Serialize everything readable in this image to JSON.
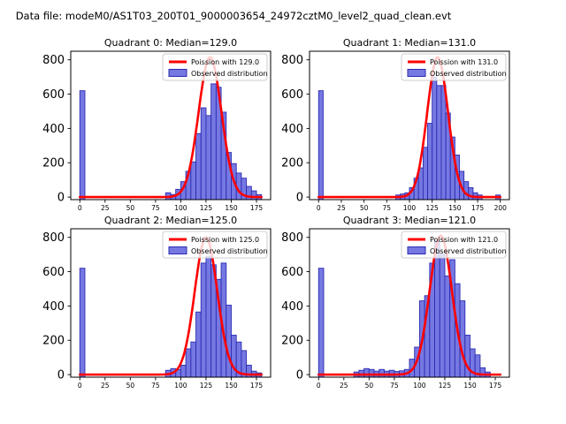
{
  "figure": {
    "title": "Data file: modeM0/AS1T03_200T01_9000003654_24972cztM0_level2_quad_clean.evt"
  },
  "colors": {
    "background": "#ffffff",
    "curve": "#ff0000",
    "bar_fill": "#7678e2",
    "bar_edge": "#2b2bb2"
  },
  "chart_data": [
    {
      "type": "bar",
      "title": "Quadrant 0: Median=129.0",
      "median": 129.0,
      "legend": [
        "Poission with 129.0",
        "Observed distribution"
      ],
      "legend_position": "upper right",
      "grid": false,
      "xticks": [
        0,
        25,
        50,
        75,
        100,
        125,
        150,
        175
      ],
      "yticks": [
        0,
        200,
        400,
        600,
        800
      ],
      "xlim": [
        -9,
        189
      ],
      "ylim": [
        -15,
        850
      ],
      "bin_width": 5,
      "curve": {
        "shape": "poisson",
        "mean": 129.0,
        "amplitude": 815,
        "xmax": 180
      },
      "bins": [
        [
          0,
          620
        ],
        [
          85,
          25
        ],
        [
          90,
          15
        ],
        [
          95,
          45
        ],
        [
          100,
          90
        ],
        [
          105,
          150
        ],
        [
          110,
          205
        ],
        [
          115,
          370
        ],
        [
          120,
          520
        ],
        [
          125,
          475
        ],
        [
          130,
          660
        ],
        [
          135,
          640
        ],
        [
          140,
          495
        ],
        [
          145,
          260
        ],
        [
          150,
          195
        ],
        [
          155,
          140
        ],
        [
          160,
          110
        ],
        [
          165,
          62
        ],
        [
          170,
          36
        ],
        [
          175,
          14
        ]
      ]
    },
    {
      "type": "bar",
      "title": "Quadrant 1: Median=131.0",
      "median": 131.0,
      "legend": [
        "Poission with 131.0",
        "Observed distribution"
      ],
      "legend_position": "upper right",
      "grid": false,
      "xticks": [
        0,
        25,
        50,
        75,
        100,
        125,
        150,
        175,
        200
      ],
      "yticks": [
        0,
        200,
        400,
        600,
        800
      ],
      "xlim": [
        -10,
        210
      ],
      "ylim": [
        -15,
        850
      ],
      "bin_width": 5,
      "curve": {
        "shape": "poisson",
        "mean": 131.0,
        "amplitude": 815,
        "xmax": 200
      },
      "bins": [
        [
          0,
          620
        ],
        [
          85,
          12
        ],
        [
          90,
          18
        ],
        [
          95,
          25
        ],
        [
          100,
          55
        ],
        [
          105,
          110
        ],
        [
          110,
          170
        ],
        [
          115,
          290
        ],
        [
          120,
          430
        ],
        [
          125,
          700
        ],
        [
          130,
          650
        ],
        [
          135,
          650
        ],
        [
          140,
          490
        ],
        [
          145,
          350
        ],
        [
          150,
          245
        ],
        [
          155,
          150
        ],
        [
          160,
          90
        ],
        [
          165,
          55
        ],
        [
          170,
          25
        ],
        [
          175,
          12
        ],
        [
          195,
          12
        ]
      ]
    },
    {
      "type": "bar",
      "title": "Quadrant 2: Median=125.0",
      "median": 125.0,
      "legend": [
        "Poission with 125.0",
        "Observed distribution"
      ],
      "legend_position": "upper right",
      "grid": false,
      "xticks": [
        0,
        25,
        50,
        75,
        100,
        125,
        150,
        175
      ],
      "yticks": [
        0,
        200,
        400,
        600,
        800
      ],
      "xlim": [
        -9,
        189
      ],
      "ylim": [
        -15,
        850
      ],
      "bin_width": 5,
      "curve": {
        "shape": "poisson",
        "mean": 125.0,
        "amplitude": 800,
        "xmax": 180
      },
      "bins": [
        [
          0,
          620
        ],
        [
          85,
          25
        ],
        [
          90,
          35
        ],
        [
          95,
          30
        ],
        [
          100,
          55
        ],
        [
          105,
          150
        ],
        [
          110,
          190
        ],
        [
          115,
          365
        ],
        [
          120,
          650
        ],
        [
          125,
          690
        ],
        [
          130,
          640
        ],
        [
          135,
          555
        ],
        [
          140,
          650
        ],
        [
          145,
          405
        ],
        [
          150,
          230
        ],
        [
          155,
          190
        ],
        [
          160,
          140
        ],
        [
          165,
          55
        ],
        [
          170,
          20
        ],
        [
          175,
          10
        ]
      ]
    },
    {
      "type": "bar",
      "title": "Quadrant 3: Median=121.0",
      "median": 121.0,
      "legend": [
        "Poission with 121.0",
        "Observed distribution"
      ],
      "legend_position": "upper right",
      "grid": false,
      "xticks": [
        0,
        25,
        50,
        75,
        100,
        125,
        150,
        175
      ],
      "yticks": [
        0,
        200,
        400,
        600,
        800
      ],
      "xlim": [
        -9,
        189
      ],
      "ylim": [
        -15,
        850
      ],
      "bin_width": 5,
      "curve": {
        "shape": "poisson",
        "mean": 121.0,
        "amplitude": 810,
        "xmax": 180
      },
      "bins": [
        [
          0,
          620
        ],
        [
          35,
          15
        ],
        [
          40,
          25
        ],
        [
          45,
          35
        ],
        [
          50,
          30
        ],
        [
          55,
          20
        ],
        [
          60,
          30
        ],
        [
          65,
          20
        ],
        [
          70,
          25
        ],
        [
          75,
          18
        ],
        [
          80,
          22
        ],
        [
          85,
          30
        ],
        [
          90,
          90
        ],
        [
          95,
          160
        ],
        [
          100,
          430
        ],
        [
          105,
          460
        ],
        [
          110,
          650
        ],
        [
          115,
          780
        ],
        [
          120,
          700
        ],
        [
          125,
          575
        ],
        [
          130,
          670
        ],
        [
          135,
          530
        ],
        [
          140,
          430
        ],
        [
          145,
          230
        ],
        [
          150,
          150
        ],
        [
          155,
          115
        ],
        [
          160,
          40
        ],
        [
          165,
          15
        ]
      ]
    }
  ]
}
